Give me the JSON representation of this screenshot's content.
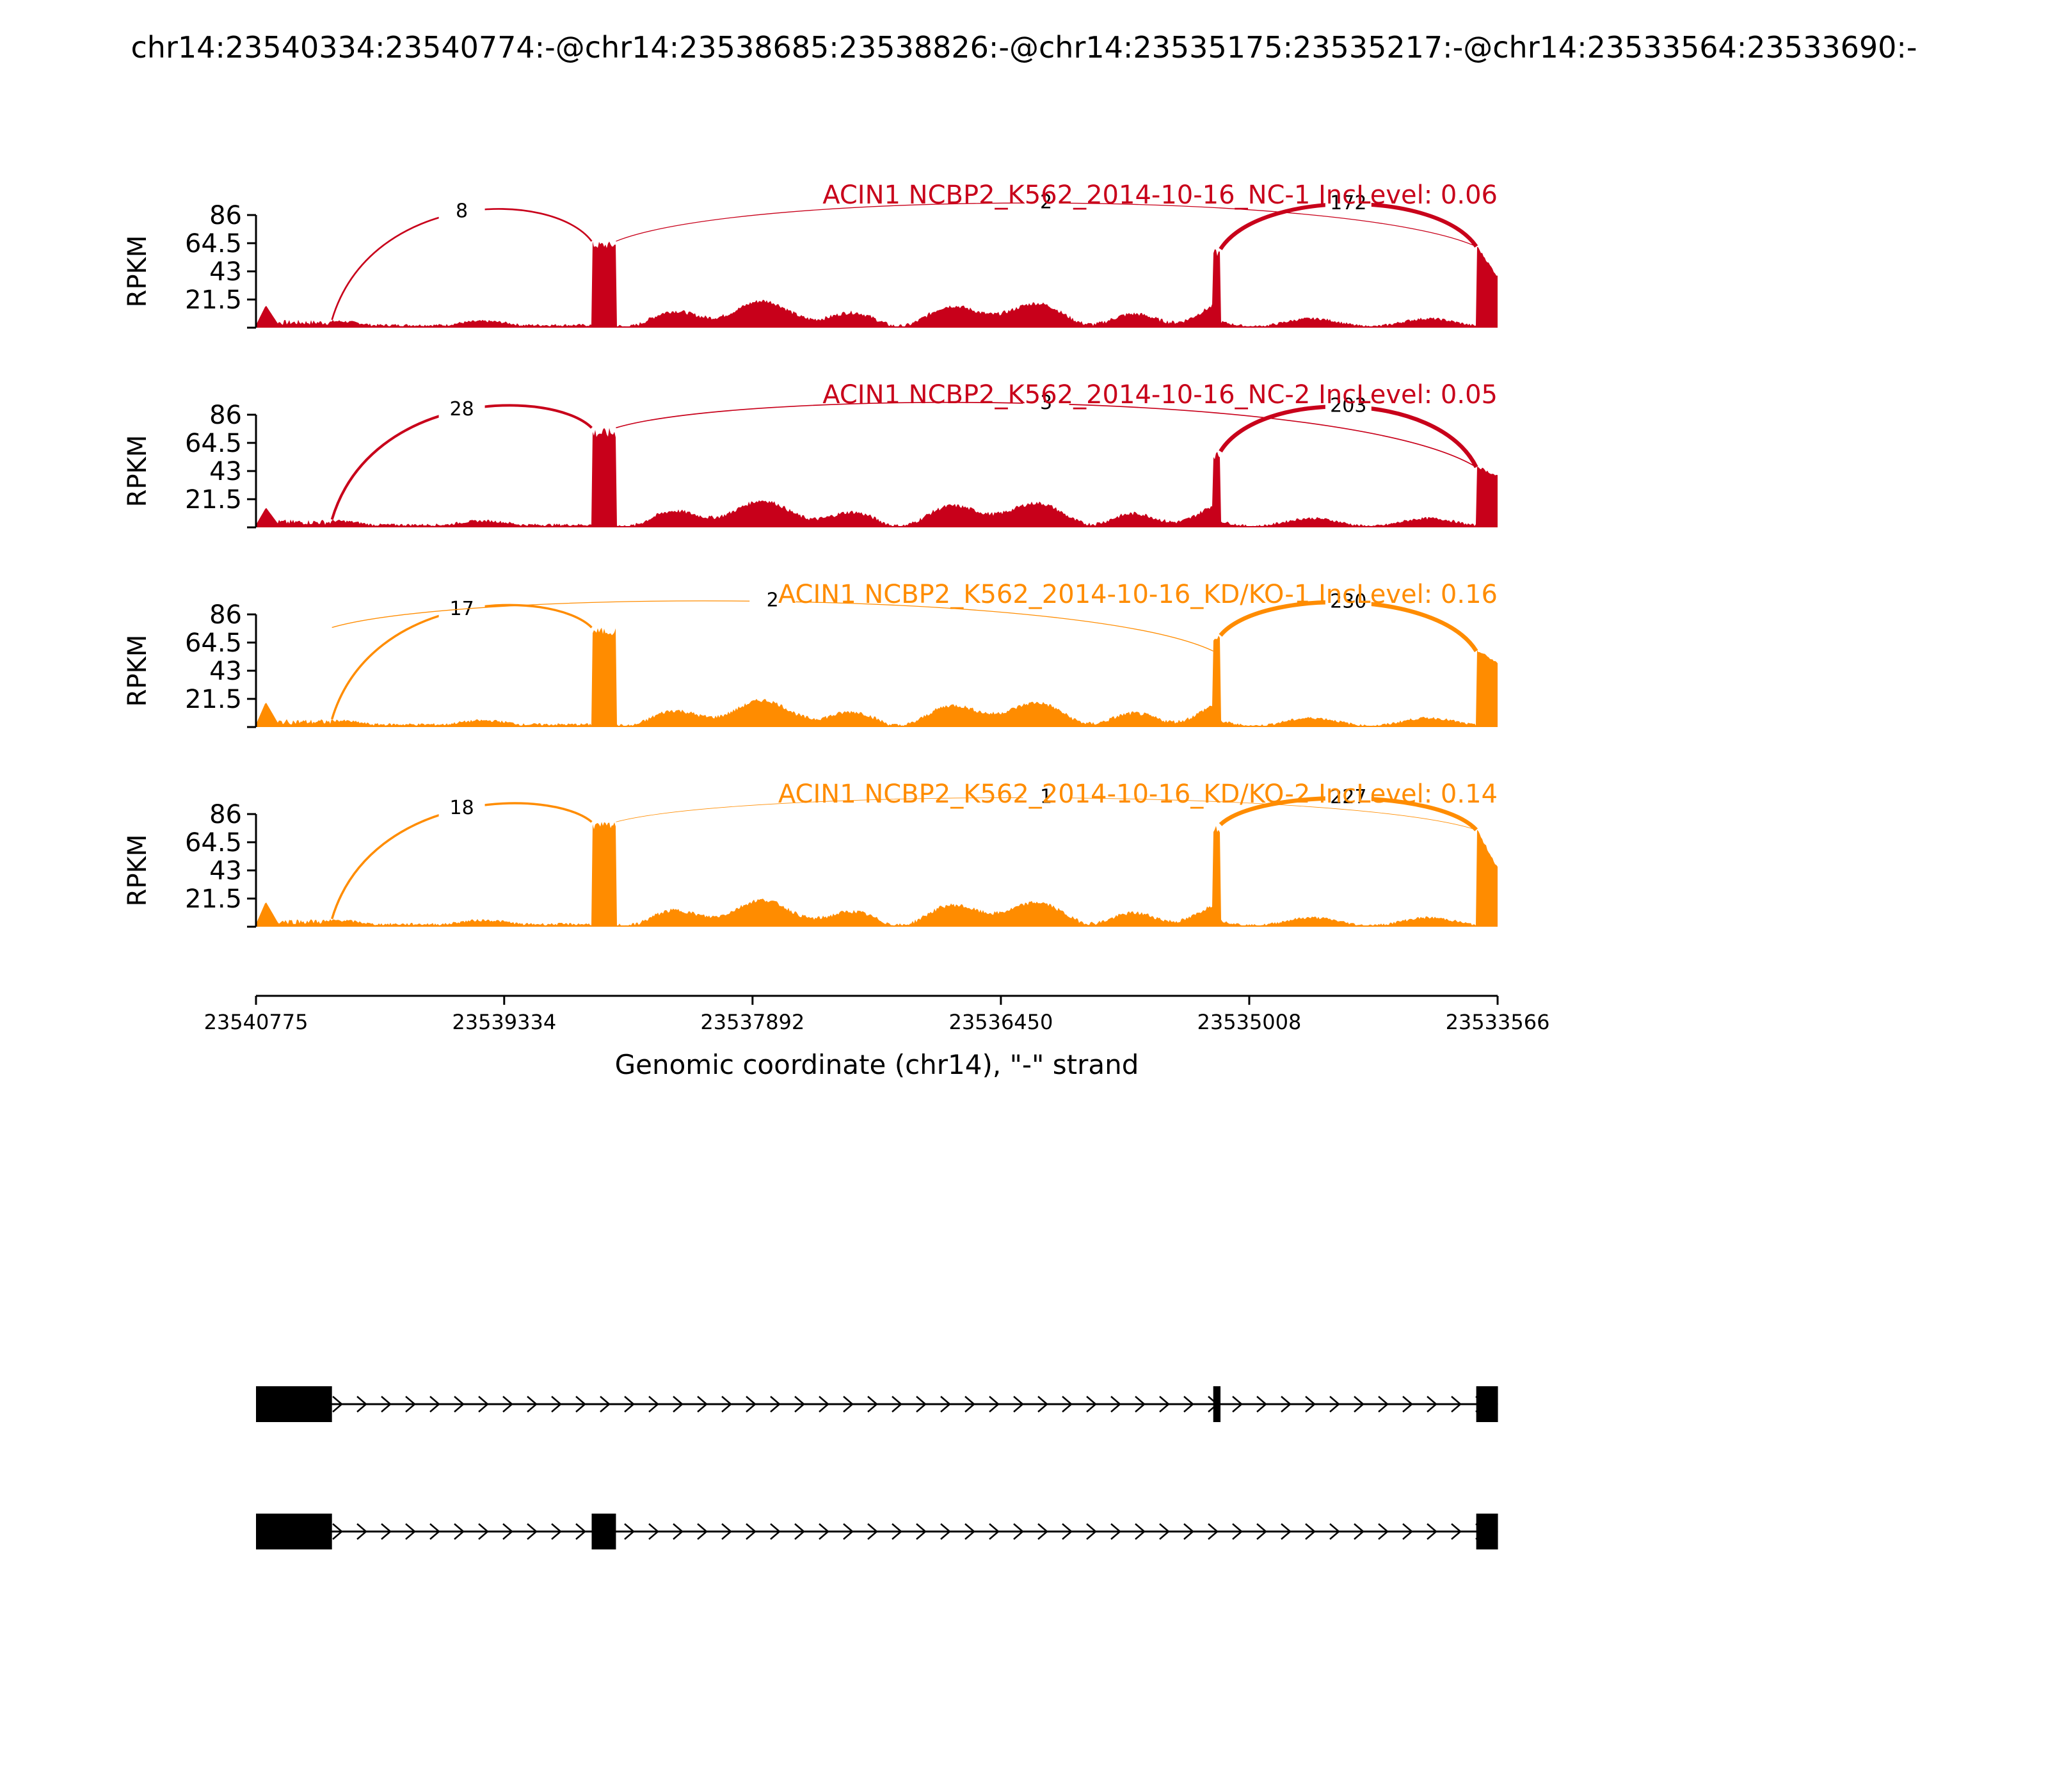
{
  "figure_title": "chr14:23540334:23540774:-@chr14:23538685:23538826:-@chr14:23535175:23535217:-@chr14:23533564:23533690:-",
  "colors": {
    "nc": "#c8001a",
    "kd": "#ff8c00",
    "axis": "#000000",
    "gene": "#000000"
  },
  "chart_data": {
    "type": "area",
    "ylabel": "RPKM",
    "xlabel": "Genomic coordinate (chr14), \"-\" strand",
    "ylim": [
      0,
      86
    ],
    "xlim": [
      23540775,
      23533566
    ],
    "x_ticks": [
      23540775,
      23539334,
      23537892,
      23536450,
      23535008,
      23533566
    ],
    "x_tick_labels": [
      "23540775",
      "23539334",
      "23537892",
      "23536450",
      "23535008",
      "23533566"
    ],
    "y_ticks": [
      21.5,
      43,
      64.5,
      86
    ],
    "y_tick_labels": [
      "21.5",
      "43",
      "64.5",
      "86"
    ],
    "exons": [
      {
        "start": 23540775,
        "end": 23540334
      },
      {
        "start": 23538826,
        "end": 23538685
      },
      {
        "start": 23535217,
        "end": 23535175
      },
      {
        "start": 23533690,
        "end": 23533564
      }
    ],
    "tracks": [
      {
        "label": "ACIN1 NCBP2_K562_2014-10-16_NC-1 IncLevel: 0.06",
        "color_key": "nc",
        "exon_levels": [
          {
            "peak": 16,
            "base": 4
          },
          {
            "peak": 66,
            "base": 60
          },
          {
            "peak": 60,
            "base": 54
          },
          {
            "peak": 62,
            "base": 38
          }
        ],
        "junctions": [
          {
            "from": 23540334,
            "to": 23538826,
            "reads": 8
          },
          {
            "from": 23538685,
            "to": 23533690,
            "reads": 2
          },
          {
            "from": 23535175,
            "to": 23533690,
            "reads": 172
          }
        ]
      },
      {
        "label": "ACIN1 NCBP2_K562_2014-10-16_NC-2 IncLevel: 0.05",
        "color_key": "nc",
        "exon_levels": [
          {
            "peak": 14,
            "base": 4
          },
          {
            "peak": 76,
            "base": 68
          },
          {
            "peak": 58,
            "base": 52
          },
          {
            "peak": 46,
            "base": 38
          }
        ],
        "junctions": [
          {
            "from": 23540334,
            "to": 23538826,
            "reads": 28
          },
          {
            "from": 23538685,
            "to": 23533690,
            "reads": 3
          },
          {
            "from": 23535175,
            "to": 23533690,
            "reads": 203
          }
        ]
      },
      {
        "label": "ACIN1 NCBP2_K562_2014-10-16_KD/KO-1 IncLevel: 0.16",
        "color_key": "kd",
        "exon_levels": [
          {
            "peak": 18,
            "base": 4
          },
          {
            "peak": 76,
            "base": 70
          },
          {
            "peak": 70,
            "base": 64
          },
          {
            "peak": 58,
            "base": 48
          }
        ],
        "junctions": [
          {
            "from": 23540334,
            "to": 23538826,
            "reads": 17
          },
          {
            "from": 23540334,
            "to": 23535217,
            "reads": 2
          },
          {
            "from": 23535175,
            "to": 23533690,
            "reads": 230
          }
        ]
      },
      {
        "label": "ACIN1 NCBP2_K562_2014-10-16_KD/KO-2 IncLevel: 0.14",
        "color_key": "kd",
        "exon_levels": [
          {
            "peak": 18,
            "base": 4
          },
          {
            "peak": 80,
            "base": 74
          },
          {
            "peak": 78,
            "base": 72
          },
          {
            "peak": 74,
            "base": 44
          }
        ],
        "junctions": [
          {
            "from": 23540334,
            "to": 23538826,
            "reads": 18
          },
          {
            "from": 23538685,
            "to": 23533690,
            "reads": 1
          },
          {
            "from": 23535175,
            "to": 23533690,
            "reads": 227
          }
        ]
      }
    ],
    "isoforms": [
      {
        "exons": [
          [
            23540775,
            23540334
          ],
          [
            23535217,
            23535175
          ],
          [
            23533690,
            23533564
          ]
        ]
      },
      {
        "exons": [
          [
            23540775,
            23540334
          ],
          [
            23538826,
            23538685
          ],
          [
            23533690,
            23533564
          ]
        ]
      }
    ]
  }
}
